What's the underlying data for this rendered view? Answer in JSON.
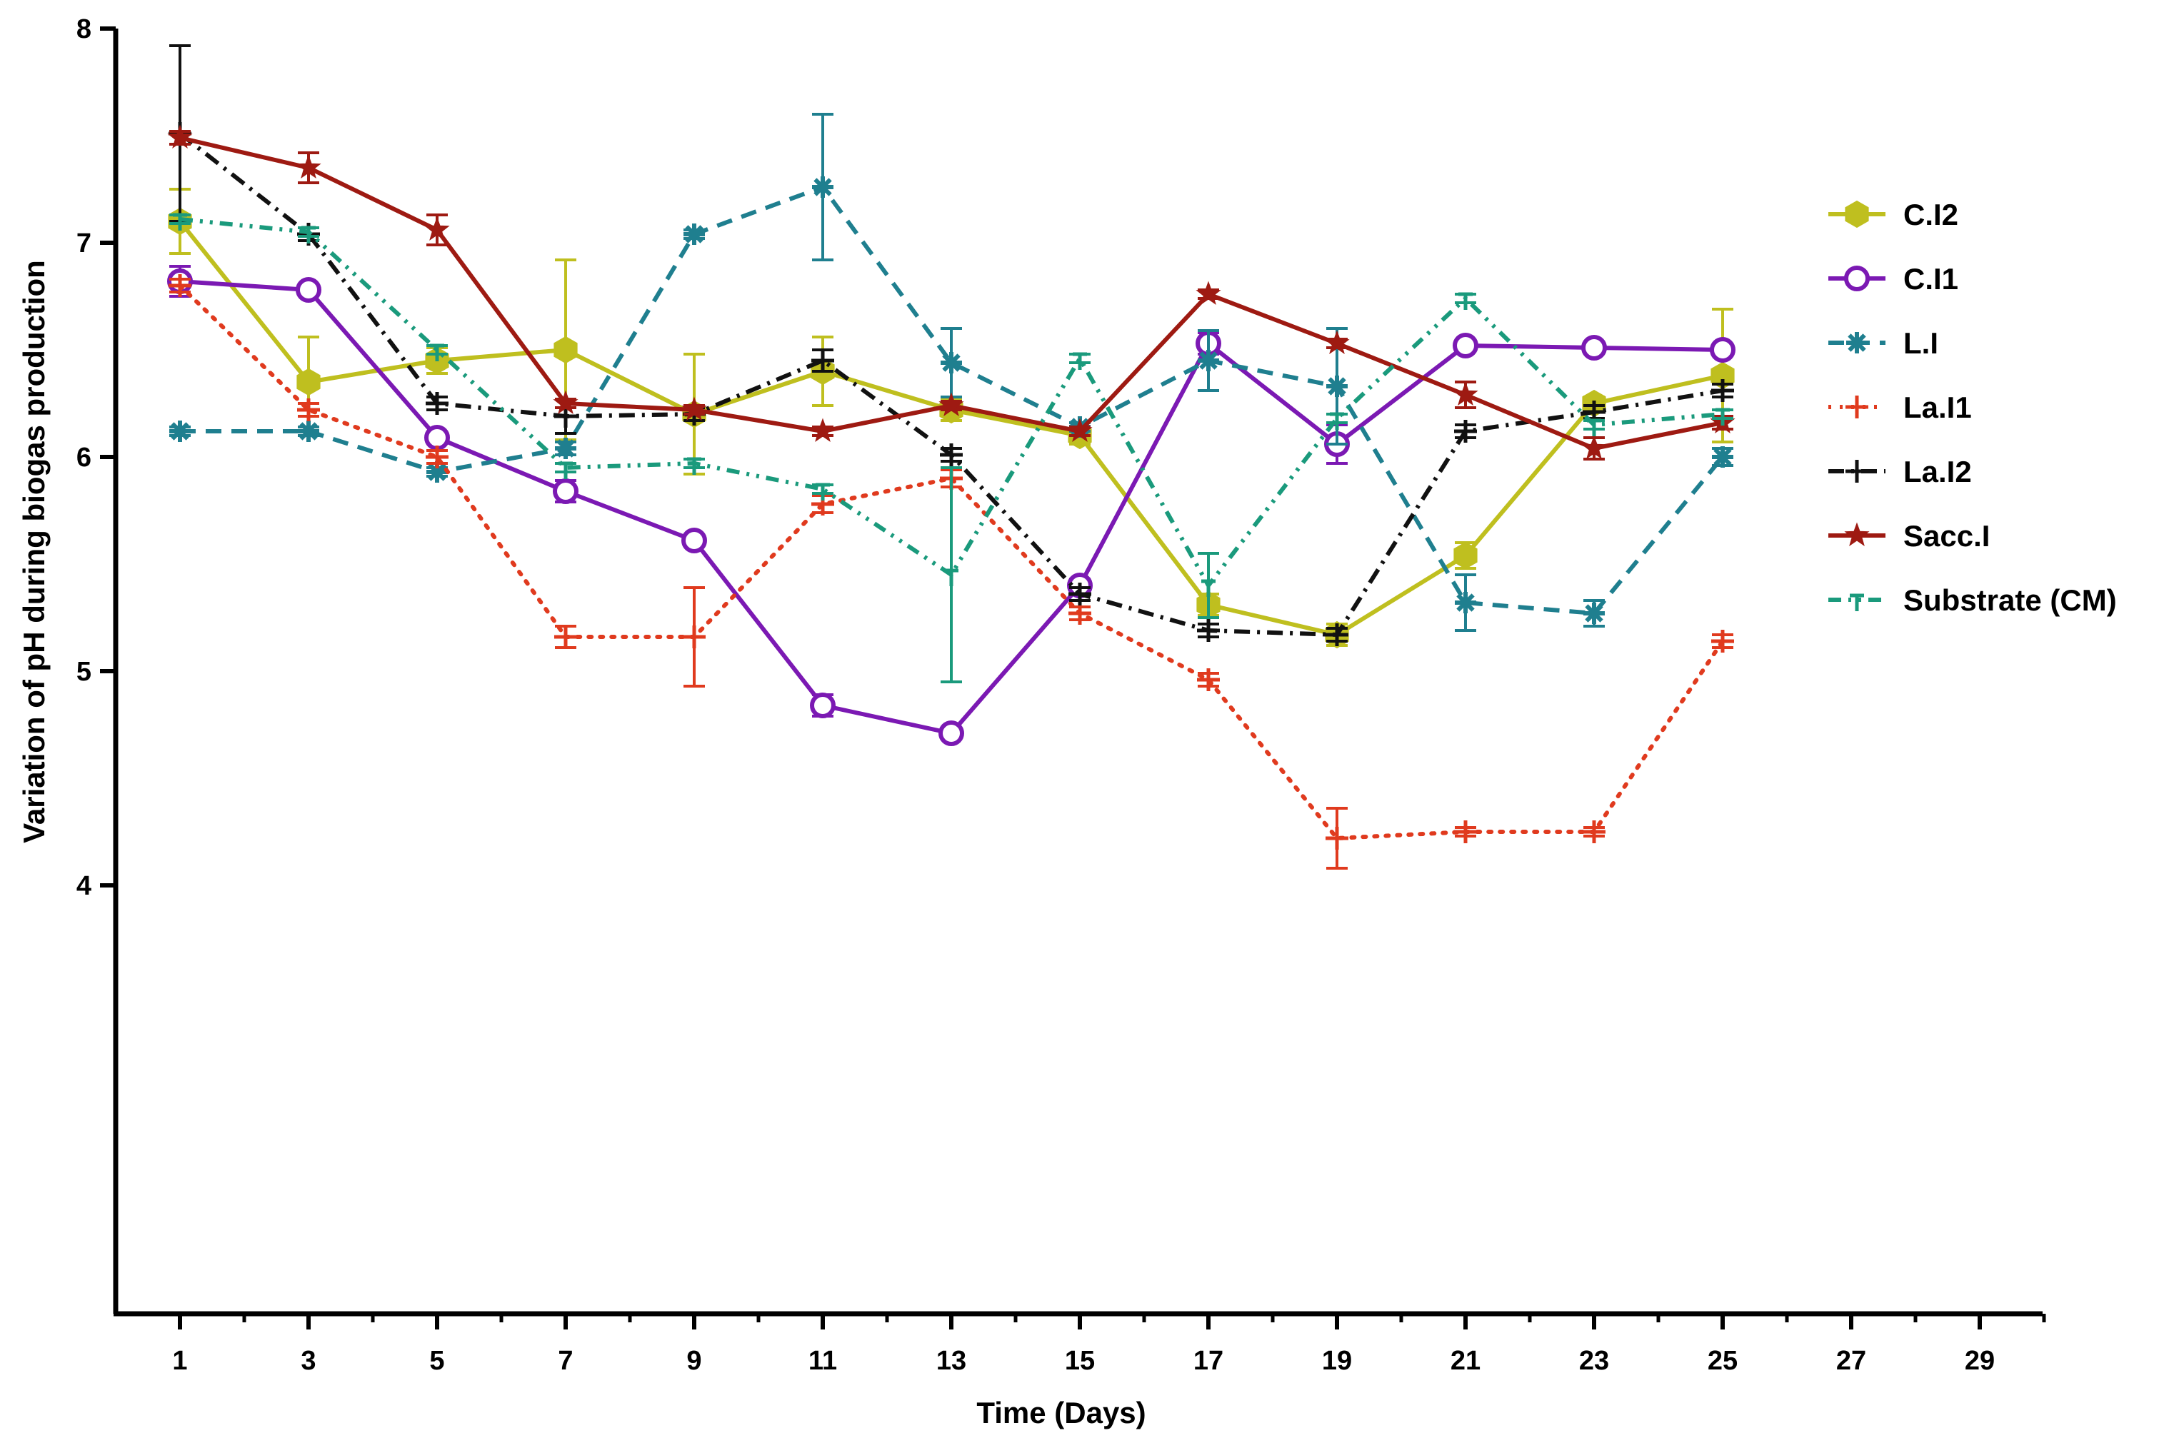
{
  "chart_data": {
    "type": "line",
    "title": "",
    "xlabel": "Time (Days)",
    "ylabel": "Variation of pH during biogas production",
    "xlim": [
      0,
      30
    ],
    "ylim": [
      2,
      8
    ],
    "xticks": [
      1,
      3,
      5,
      7,
      9,
      11,
      13,
      15,
      17,
      19,
      21,
      23,
      25,
      27,
      29
    ],
    "yticks": [
      4,
      5,
      6,
      7,
      8
    ],
    "legend_position": "right",
    "series": [
      {
        "name": "C.I2",
        "color": "#bfbf1f",
        "dash": "solid",
        "marker": "hexagon",
        "x": [
          1,
          3,
          5,
          7,
          9,
          11,
          13,
          15,
          17,
          19,
          21,
          23,
          25
        ],
        "y": [
          7.1,
          6.35,
          6.45,
          6.5,
          6.2,
          6.4,
          6.22,
          6.1,
          5.31,
          5.17,
          5.54,
          6.25,
          6.38
        ],
        "err": [
          0.15,
          0.21,
          0.06,
          0.42,
          0.28,
          0.16,
          0.05,
          0.04,
          0.05,
          0.05,
          0.06,
          0.03,
          0.31
        ]
      },
      {
        "name": "C.I1",
        "color": "#7b19b3",
        "dash": "solid",
        "marker": "circle",
        "x": [
          1,
          3,
          5,
          7,
          9,
          11,
          13,
          15,
          17,
          19,
          21,
          23,
          25
        ],
        "y": [
          6.82,
          6.78,
          6.09,
          5.84,
          5.61,
          4.84,
          4.71,
          5.4,
          6.53,
          6.06,
          6.52,
          6.51,
          6.5
        ],
        "err": [
          0.07,
          0.02,
          0.02,
          0.05,
          0.02,
          0.05,
          0.02,
          0.03,
          0.05,
          0.09,
          0.02,
          0.02,
          0.02
        ]
      },
      {
        "name": "L.I",
        "color": "#1f7f8f",
        "dash": "dashed",
        "marker": "asterisk",
        "x": [
          1,
          3,
          5,
          7,
          9,
          11,
          13,
          15,
          17,
          19,
          21,
          23,
          25
        ],
        "y": [
          6.12,
          6.12,
          5.93,
          6.04,
          7.04,
          7.26,
          6.44,
          6.14,
          6.45,
          6.33,
          5.32,
          5.27,
          6.0
        ],
        "err": [
          0.02,
          0.02,
          0.02,
          0.03,
          0.02,
          0.34,
          0.16,
          0.02,
          0.14,
          0.27,
          0.13,
          0.06,
          0.04
        ]
      },
      {
        "name": "La.I1",
        "color": "#e03a1e",
        "dash": "dotted",
        "marker": "plus",
        "x": [
          1,
          3,
          5,
          7,
          9,
          11,
          13,
          15,
          17,
          19,
          21,
          23,
          25
        ],
        "y": [
          6.8,
          6.22,
          6.0,
          5.16,
          5.16,
          5.78,
          5.9,
          5.27,
          4.96,
          4.22,
          4.25,
          4.25,
          5.14
        ],
        "err": [
          0.03,
          0.03,
          0.03,
          0.05,
          0.23,
          0.04,
          0.04,
          0.03,
          0.03,
          0.14,
          0.02,
          0.02,
          0.03
        ]
      },
      {
        "name": "La.I2",
        "color": "#111111",
        "dash": "dashdot",
        "marker": "plus",
        "x": [
          1,
          3,
          5,
          7,
          9,
          11,
          13,
          15,
          17,
          19,
          21,
          23,
          25
        ],
        "y": [
          7.51,
          7.04,
          6.25,
          6.19,
          6.2,
          6.45,
          6.01,
          5.36,
          5.19,
          5.17,
          6.12,
          6.21,
          6.31
        ],
        "err": [
          0.41,
          0.03,
          0.03,
          0.08,
          0.03,
          0.05,
          0.03,
          0.03,
          0.03,
          0.03,
          0.03,
          0.03,
          0.03
        ]
      },
      {
        "name": "Sacc.I",
        "color": "#9e1a12",
        "dash": "solid",
        "marker": "star",
        "x": [
          1,
          3,
          5,
          7,
          9,
          11,
          13,
          15,
          17,
          19,
          21,
          23,
          25
        ],
        "y": [
          7.49,
          7.35,
          7.06,
          6.25,
          6.22,
          6.12,
          6.24,
          6.12,
          6.76,
          6.53,
          6.29,
          6.04,
          6.16
        ],
        "err": [
          0.03,
          0.07,
          0.07,
          0.02,
          0.02,
          0.02,
          0.02,
          0.02,
          0.02,
          0.02,
          0.06,
          0.05,
          0.03
        ]
      },
      {
        "name": "Substrate (CM)",
        "color": "#1a9a7c",
        "dash": "dashdotdot",
        "marker": "tick",
        "x": [
          1,
          3,
          5,
          7,
          9,
          11,
          13,
          15,
          17,
          19,
          21,
          23,
          25
        ],
        "y": [
          7.11,
          7.05,
          6.5,
          5.95,
          5.97,
          5.85,
          5.45,
          6.46,
          5.4,
          6.18,
          6.74,
          6.15,
          6.2
        ],
        "err": [
          0.02,
          0.02,
          0.02,
          0.02,
          0.02,
          0.02,
          0.5,
          0.02,
          0.15,
          0.02,
          0.02,
          0.02,
          0.02
        ]
      }
    ]
  }
}
